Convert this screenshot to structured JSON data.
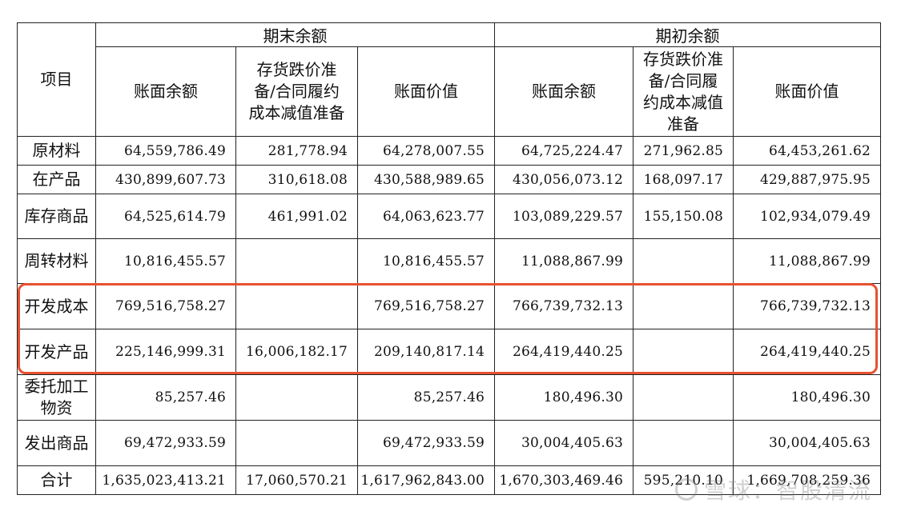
{
  "table": {
    "item_header": "项目",
    "group_end": "期末余额",
    "group_begin": "期初余额",
    "sub_book_balance": "账面余额",
    "sub_provision": "存货跌价准备/合同履约成本减值准备",
    "sub_book_value": "账面价值",
    "sub_book_balance_2": "账面余额",
    "sub_provision_2": "存货跌价准备/合同履约成本减值准备",
    "sub_book_value_2": "账面价值",
    "rows": [
      {
        "item": "原材料",
        "c1": "64,559,786.49",
        "c2": "281,778.94",
        "c3": "64,278,007.55",
        "c4": "64,725,224.47",
        "c5": "271,962.85",
        "c6": "64,453,261.62"
      },
      {
        "item": "在产品",
        "c1": "430,899,607.73",
        "c2": "310,618.08",
        "c3": "430,588,989.65",
        "c4": "430,056,073.12",
        "c5": "168,097.17",
        "c6": "429,887,975.95"
      },
      {
        "item": "库存商品",
        "c1": "64,525,614.79",
        "c2": "461,991.02",
        "c3": "64,063,623.77",
        "c4": "103,089,229.57",
        "c5": "155,150.08",
        "c6": "102,934,079.49"
      },
      {
        "item": "周转材料",
        "c1": "10,816,455.57",
        "c2": "",
        "c3": "10,816,455.57",
        "c4": "11,088,867.99",
        "c5": "",
        "c6": "11,088,867.99"
      },
      {
        "item": "开发成本",
        "c1": "769,516,758.27",
        "c2": "",
        "c3": "769,516,758.27",
        "c4": "766,739,732.13",
        "c5": "",
        "c6": "766,739,732.13"
      },
      {
        "item": "开发产品",
        "c1": "225,146,999.31",
        "c2": "16,006,182.17",
        "c3": "209,140,817.14",
        "c4": "264,419,440.25",
        "c5": "",
        "c6": "264,419,440.25"
      },
      {
        "item": "委托加工物资",
        "c1": "85,257.46",
        "c2": "",
        "c3": "85,257.46",
        "c4": "180,496.30",
        "c5": "",
        "c6": "180,496.30"
      },
      {
        "item": "发出商品",
        "c1": "69,472,933.59",
        "c2": "",
        "c3": "69,472,933.59",
        "c4": "30,004,405.63",
        "c5": "",
        "c6": "30,004,405.63"
      },
      {
        "item": "合计",
        "c1": "1,635,023,413.21",
        "c2": "17,060,570.21",
        "c3": "1,617,962,843.00",
        "c4": "1,670,303,469.46",
        "c5": "595,210.10",
        "c6": "1,669,708,259.36"
      }
    ]
  },
  "highlight": {
    "color": "#e8502f",
    "rows": [
      "开发成本",
      "开发产品"
    ]
  },
  "watermark": {
    "text": "雪球：智股清流",
    "icon": "snowball-logo-icon"
  }
}
